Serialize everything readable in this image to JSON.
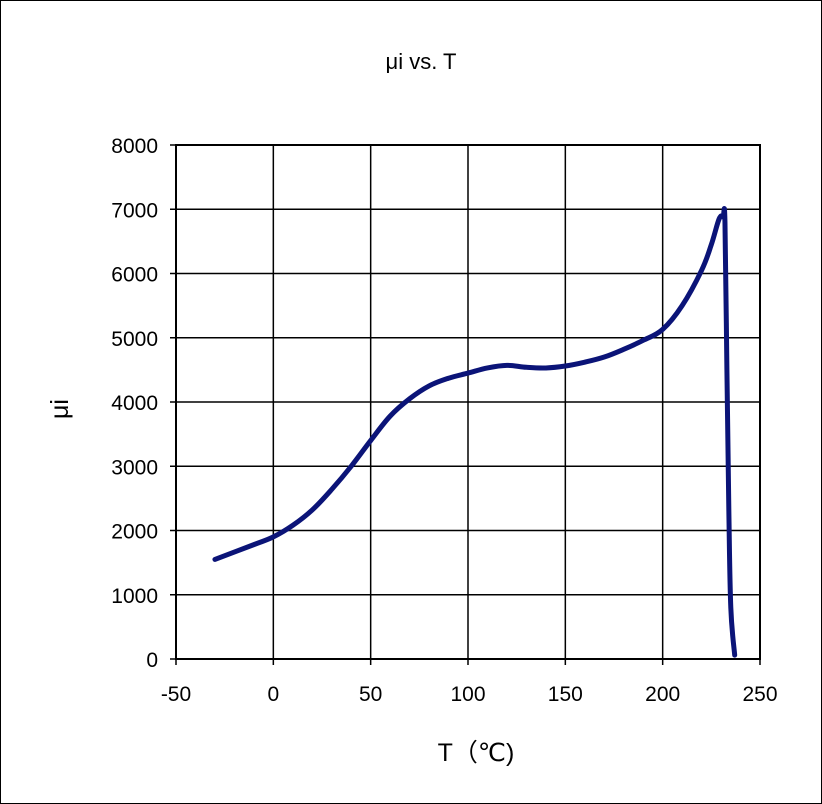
{
  "chart_data": {
    "type": "line",
    "title": "μi vs. T",
    "xlabel": "T（℃)",
    "ylabel": "μi",
    "xlim": [
      -50,
      250
    ],
    "ylim": [
      0,
      8000
    ],
    "x_ticks": [
      "-50",
      "0",
      "50",
      "100",
      "150",
      "200",
      "250"
    ],
    "y_ticks": [
      "0",
      "1000",
      "2000",
      "3000",
      "4000",
      "5000",
      "6000",
      "7000",
      "8000"
    ],
    "x_tick_values": [
      -50,
      0,
      50,
      100,
      150,
      200,
      250
    ],
    "y_tick_values": [
      0,
      1000,
      2000,
      3000,
      4000,
      5000,
      6000,
      7000,
      8000
    ],
    "grid": true,
    "legend": "none",
    "series": [
      {
        "color": "#0b1478",
        "x": [
          -30,
          -10,
          0,
          10,
          20,
          30,
          40,
          50,
          60,
          70,
          80,
          90,
          100,
          110,
          120,
          130,
          140,
          150,
          160,
          170,
          180,
          190,
          200,
          210,
          220,
          225,
          229,
          231,
          232,
          233,
          234,
          235,
          237
        ],
        "y": [
          1550,
          1780,
          1900,
          2080,
          2320,
          2640,
          3000,
          3400,
          3780,
          4050,
          4250,
          4370,
          4450,
          4530,
          4570,
          4540,
          4530,
          4560,
          4620,
          4700,
          4820,
          4960,
          5130,
          5500,
          6050,
          6450,
          6850,
          6880,
          6800,
          4500,
          2300,
          800,
          60
        ]
      }
    ]
  }
}
